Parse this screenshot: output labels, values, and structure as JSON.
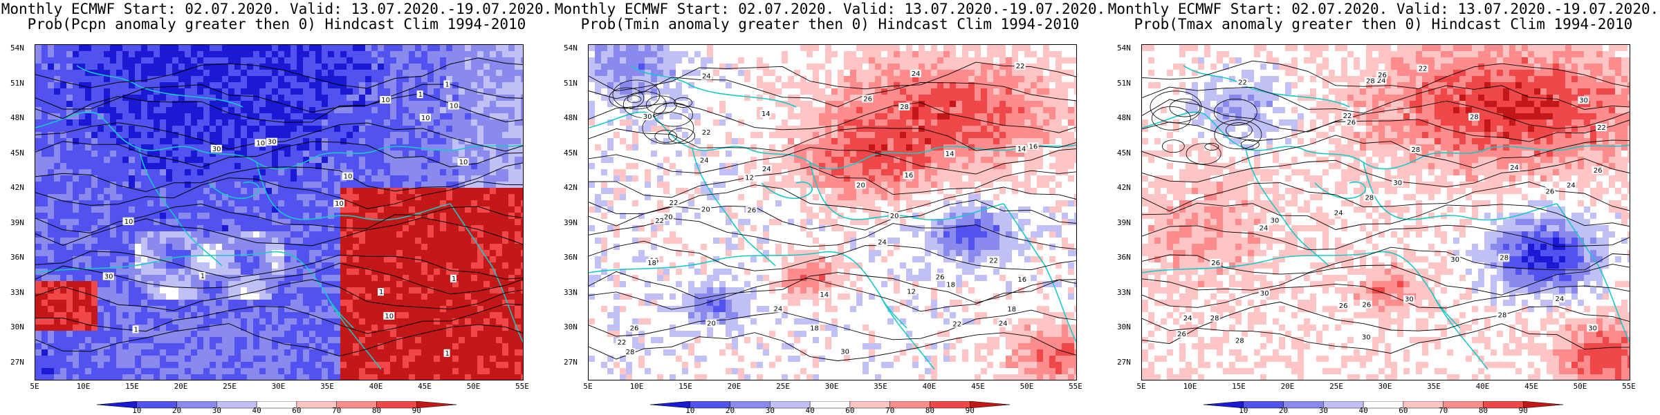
{
  "panels": [
    {
      "id": "pcpn",
      "title_line1": "Monthly ECMWF Start: 02.07.2020. Valid: 13.07.2020.-19.07.2020.",
      "title_line2": "Prob(Pcpn anomaly greater then 0) Hindcast Clim 1994-2010",
      "contour_labels": [
        "10",
        "10",
        "10",
        "1",
        "10",
        "10",
        "30",
        "1",
        "10",
        "1",
        "1",
        "10",
        "10",
        "1",
        "10",
        "30",
        "1",
        "30",
        "1"
      ],
      "dominant": "blue"
    },
    {
      "id": "tmin",
      "title_line1": "Monthly ECMWF Start: 02.07.2020. Valid: 13.07.2020.-19.07.2020.",
      "title_line2": "Prob(Tmin anomaly greater then 0) Hindcast Clim 1994-2010",
      "contour_labels": [
        "14",
        "16",
        "18",
        "20",
        "22",
        "24",
        "12",
        "14",
        "18",
        "20",
        "16",
        "22",
        "24",
        "18",
        "20",
        "14",
        "16",
        "26",
        "28",
        "22",
        "24",
        "20",
        "26",
        "30",
        "22",
        "24",
        "26",
        "18",
        "12",
        "20",
        "22",
        "24",
        "26",
        "28",
        "30",
        "24",
        "22",
        "16",
        "14",
        "22",
        "24"
      ],
      "dominant": "red"
    },
    {
      "id": "tmax",
      "title_line1": "Monthly ECMWF Start: 02.07.2020. Valid: 13.07.2020.-19.07.2020.",
      "title_line2": "Prob(Tmax anomaly greater then 0) Hindcast Clim 1994-2010",
      "contour_labels": [
        "24",
        "26",
        "28",
        "30",
        "22",
        "24",
        "26",
        "28",
        "30",
        "22",
        "26",
        "28",
        "24",
        "26",
        "28",
        "30",
        "22",
        "24",
        "26",
        "28",
        "30",
        "30",
        "24",
        "26",
        "30",
        "28",
        "26",
        "24",
        "28",
        "30",
        "22",
        "26",
        "24",
        "28",
        "30"
      ],
      "dominant": "red"
    }
  ],
  "axes": {
    "lat_labels": [
      "54N",
      "51N",
      "48N",
      "45N",
      "42N",
      "39N",
      "36N",
      "33N",
      "30N",
      "27N"
    ],
    "lon_labels": [
      "5E",
      "10E",
      "15E",
      "20E",
      "25E",
      "30E",
      "35E",
      "40E",
      "45E",
      "50E",
      "55E"
    ]
  },
  "colorbar": {
    "labels": [
      "10",
      "20",
      "30",
      "40",
      "60",
      "70",
      "80",
      "90"
    ],
    "colors": [
      "#1a1ad4",
      "#5252f0",
      "#8a8aee",
      "#c0c0f6",
      "#ffffff",
      "#ffc4c4",
      "#ff8c8c",
      "#f04848",
      "#c41818"
    ]
  }
}
